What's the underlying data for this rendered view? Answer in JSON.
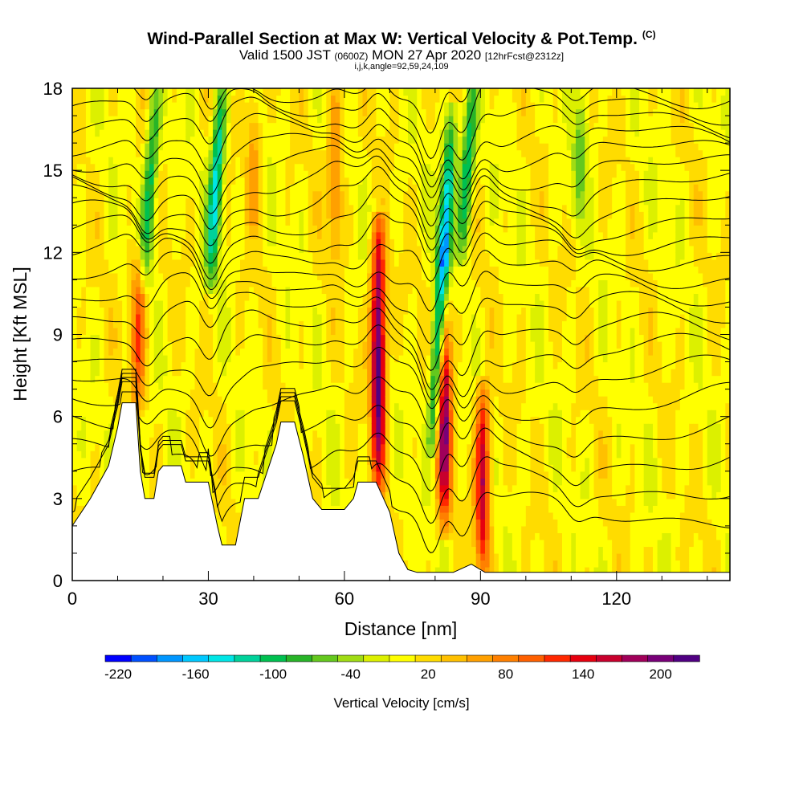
{
  "title": "Wind-Parallel Section at Max W: Vertical Velocity & Pot.Temp.",
  "title_mark": "(C)",
  "subtitle": {
    "main_a": "Valid 1500 JST",
    "main_small_a": "(0600Z)",
    "main_b": "MON 27 Apr 2020",
    "main_small_b": "[12hrFcst@2312z]"
  },
  "params": "i,j,k,angle=92,59,24,109",
  "chart_data": {
    "type": "heatmap",
    "title": "Wind-Parallel Section at Max W: Vertical Velocity & Pot.Temp.",
    "xlabel": "Distance [nm]",
    "ylabel": "Height [Kft MSL]",
    "xlim": [
      0,
      145
    ],
    "ylim": [
      0,
      18
    ],
    "xticks": [
      0,
      30,
      60,
      90,
      120
    ],
    "yticks": [
      0,
      3,
      6,
      9,
      12,
      15,
      18
    ],
    "xtick_labels": [
      "0",
      "30",
      "60",
      "90",
      "120"
    ],
    "ytick_labels": [
      "0",
      "3",
      "6",
      "9",
      "12",
      "15",
      "18"
    ],
    "colorbar": {
      "label": "Vertical Velocity [cm/s]",
      "tick_values": [
        -220,
        -160,
        -100,
        -40,
        20,
        80,
        140,
        200
      ],
      "tick_labels": [
        "-220",
        "-160",
        "-100",
        "-40",
        "20",
        "80",
        "140",
        "200"
      ],
      "colors": [
        "#0000ff",
        "#0050ff",
        "#0096ff",
        "#00c8ff",
        "#00e6e6",
        "#00d29b",
        "#00c050",
        "#28b428",
        "#64c81e",
        "#a0dc14",
        "#dcf000",
        "#ffff00",
        "#ffdc00",
        "#ffc000",
        "#ffa000",
        "#ff8000",
        "#ff6000",
        "#ff2800",
        "#e6000f",
        "#c8002d",
        "#a0005a",
        "#780078",
        "#500082"
      ]
    },
    "terrain_profile": [
      [
        0,
        2
      ],
      [
        2,
        2.5
      ],
      [
        4,
        3
      ],
      [
        6,
        3.6
      ],
      [
        8,
        4.2
      ],
      [
        10,
        5.6
      ],
      [
        11,
        6.5
      ],
      [
        14,
        6.5
      ],
      [
        15,
        4
      ],
      [
        16,
        3
      ],
      [
        18,
        3
      ],
      [
        19,
        4
      ],
      [
        20,
        4.2
      ],
      [
        24,
        4.2
      ],
      [
        25,
        3.6
      ],
      [
        30,
        3.6
      ],
      [
        32,
        2
      ],
      [
        33,
        1.3
      ],
      [
        36,
        1.3
      ],
      [
        38,
        3
      ],
      [
        41,
        3
      ],
      [
        43,
        4
      ],
      [
        45,
        5
      ],
      [
        46,
        5.8
      ],
      [
        49,
        5.8
      ],
      [
        51,
        4.5
      ],
      [
        53,
        3
      ],
      [
        55,
        2.6
      ],
      [
        60,
        2.6
      ],
      [
        62,
        3
      ],
      [
        63,
        3.6
      ],
      [
        67,
        3.6
      ],
      [
        70,
        2.5
      ],
      [
        72,
        1
      ],
      [
        74,
        0.4
      ],
      [
        76,
        0.3
      ],
      [
        84,
        0.3
      ],
      [
        88,
        0.6
      ],
      [
        91,
        0.3
      ],
      [
        145,
        0.3
      ]
    ],
    "updrafts": [
      {
        "x": 14.5,
        "y_base": 6.5,
        "y_top": 12,
        "peak": 110
      },
      {
        "x": 67.5,
        "y_base": 3.6,
        "y_top": 13,
        "peak": 230
      },
      {
        "x": 82,
        "y_base": 2,
        "y_top": 11,
        "peak": 190
      },
      {
        "x": 90.5,
        "y_base": 0.5,
        "y_top": 7,
        "peak": 170
      },
      {
        "x": 58,
        "y_base": 12,
        "y_top": 18,
        "peak": 80
      },
      {
        "x": 40,
        "y_base": 13,
        "y_top": 18,
        "peak": 60
      }
    ],
    "downdrafts": [
      {
        "x": 30.5,
        "y_base": 11,
        "y_top": 18,
        "peak": -150
      },
      {
        "x": 16,
        "y_base": 11,
        "y_top": 18,
        "peak": -110
      },
      {
        "x": 79.5,
        "y_base": 5,
        "y_top": 17,
        "peak": -200
      },
      {
        "x": 86,
        "y_base": 12,
        "y_top": 18,
        "peak": -120
      },
      {
        "x": 111,
        "y_base": 13,
        "y_top": 18,
        "peak": -60
      }
    ],
    "isentrope_heights": [
      2.5,
      3.5,
      4.5,
      5.5,
      6.5,
      7.5,
      8.3,
      9.1,
      9.9,
      10.6,
      11.3,
      12,
      12.6,
      13.2,
      13.8,
      14.4,
      15,
      15.6,
      16.2,
      16.8,
      17.4,
      18
    ]
  }
}
